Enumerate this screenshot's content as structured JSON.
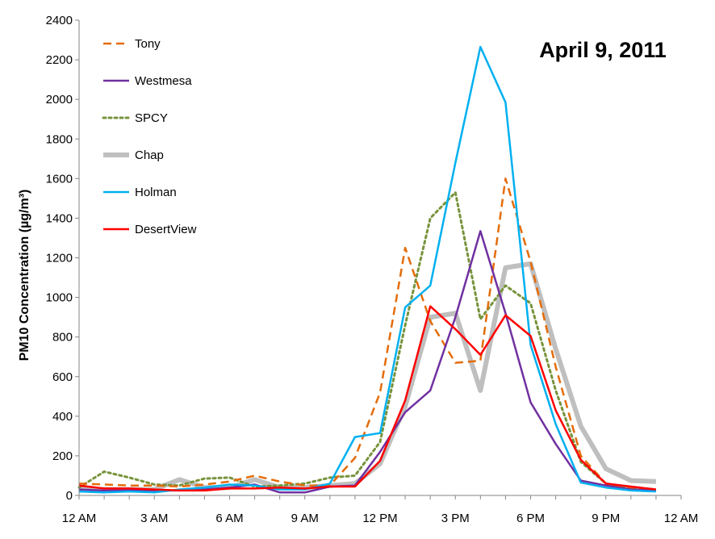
{
  "chart_data": {
    "type": "line",
    "title": "April 9, 2011",
    "xlabel": "",
    "ylabel": "PM10 Concentration  (µg/m³)",
    "ylim": [
      0,
      2400
    ],
    "yticks": [
      0,
      200,
      400,
      600,
      800,
      1000,
      1200,
      1400,
      1600,
      1800,
      2000,
      2200,
      2400
    ],
    "xlim": [
      0,
      24
    ],
    "xticks": [
      {
        "value": 0,
        "label": "12 AM"
      },
      {
        "value": 3,
        "label": "3 AM"
      },
      {
        "value": 6,
        "label": "6 AM"
      },
      {
        "value": 9,
        "label": "9 AM"
      },
      {
        "value": 12,
        "label": "12 PM"
      },
      {
        "value": 15,
        "label": "3 PM"
      },
      {
        "value": 18,
        "label": "6 PM"
      },
      {
        "value": 21,
        "label": "9 PM"
      },
      {
        "value": 24,
        "label": "12 AM"
      }
    ],
    "grid": false,
    "legend_position": "top-left",
    "x": [
      0,
      1,
      2,
      3,
      4,
      5,
      6,
      7,
      8,
      9,
      10,
      11,
      12,
      13,
      14,
      15,
      16,
      17,
      18,
      19,
      20,
      21,
      22,
      23
    ],
    "series": [
      {
        "name": "Tony",
        "color": "#E46C0A",
        "style": "dashed",
        "values": [
          60,
          55,
          50,
          50,
          45,
          55,
          70,
          100,
          70,
          50,
          50,
          190,
          520,
          1250,
          880,
          670,
          680,
          1600,
          1180,
          650,
          200,
          60,
          40,
          25
        ]
      },
      {
        "name": "Westmesa",
        "color": "#7030A0",
        "style": "solid",
        "values": [
          30,
          25,
          25,
          25,
          25,
          30,
          40,
          55,
          15,
          15,
          45,
          50,
          220,
          420,
          530,
          900,
          1335,
          920,
          470,
          260,
          75,
          50,
          30,
          25
        ]
      },
      {
        "name": "SPCY",
        "color": "#77933C",
        "style": "dotted",
        "values": [
          40,
          120,
          90,
          55,
          50,
          85,
          90,
          45,
          50,
          60,
          90,
          100,
          270,
          860,
          1400,
          1530,
          890,
          1060,
          970,
          530,
          170,
          60,
          40,
          30
        ]
      },
      {
        "name": "Chap",
        "color": "#BFBFBF",
        "style": "thick",
        "values": [
          30,
          30,
          30,
          30,
          80,
          40,
          40,
          80,
          40,
          40,
          50,
          60,
          160,
          450,
          900,
          920,
          530,
          1150,
          1170,
          740,
          350,
          135,
          75,
          70
        ]
      },
      {
        "name": "Holman",
        "color": "#00B0F0",
        "style": "solid",
        "values": [
          20,
          15,
          20,
          15,
          30,
          40,
          55,
          50,
          30,
          30,
          60,
          295,
          315,
          950,
          1060,
          1680,
          2265,
          1985,
          760,
          360,
          65,
          40,
          25,
          20
        ]
      },
      {
        "name": "DesertView",
        "color": "#FF0000",
        "style": "solid",
        "values": [
          50,
          35,
          35,
          30,
          25,
          25,
          35,
          35,
          40,
          35,
          45,
          45,
          175,
          480,
          955,
          840,
          710,
          910,
          805,
          430,
          180,
          60,
          45,
          30
        ]
      }
    ]
  }
}
